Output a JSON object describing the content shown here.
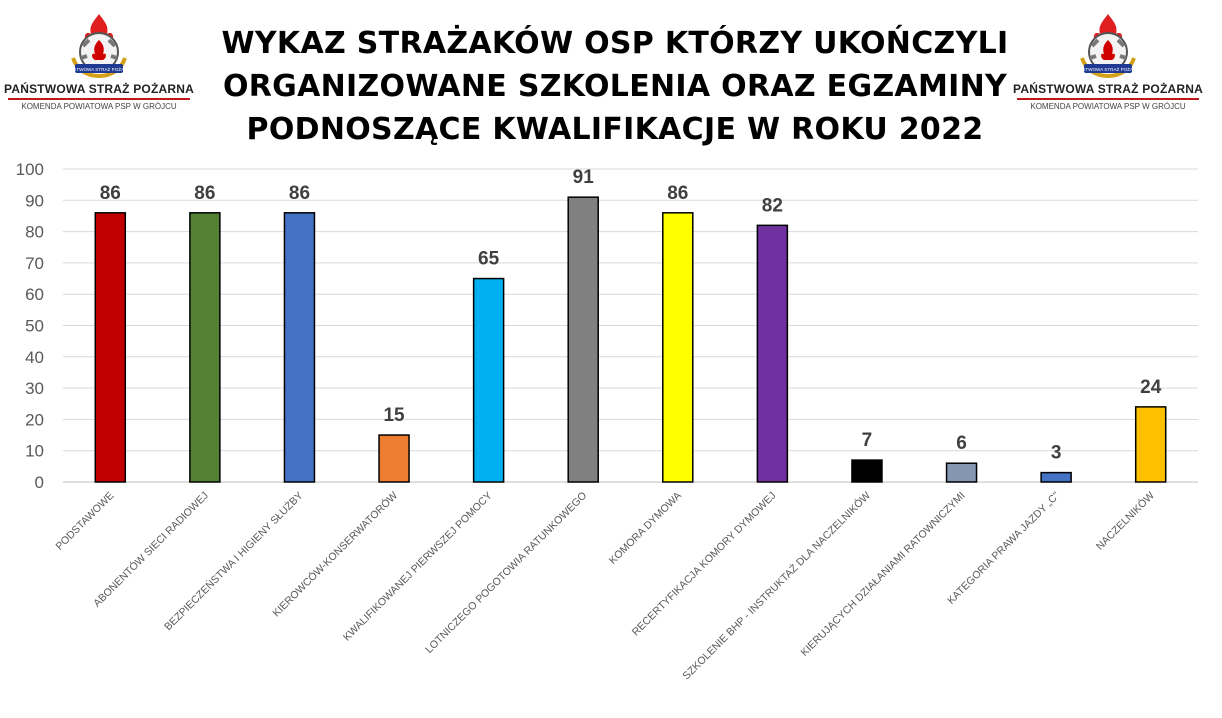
{
  "header": {
    "title_lines": [
      "WYKAZ STRAŻAKÓW OSP KTÓRZY UKOŃCZYLI",
      "ORGANIZOWANE SZKOLENIA ORAZ EGZAMINY",
      "PODNOSZĄCE KWALIFIKACJE W ROKU 2022"
    ]
  },
  "logos": {
    "org_name": "PAŃSTWOWA STRAŻ POŻARNA",
    "unit_name": "KOMENDA POWIATOWA PSP W GRÓJCU",
    "emblem_ribbon": "PAŃSTWOWA STRAŻ POŻARNA"
  },
  "chart_data": {
    "type": "bar",
    "title": "WYKAZ STRAŻAKÓW OSP KTÓRZY UKOŃCZYLI ORGANIZOWANE SZKOLENIA ORAZ EGZAMINY PODNOSZĄCE KWALIFIKACJE W ROKU 2022",
    "xlabel": "",
    "ylabel": "",
    "ylim": [
      0,
      100
    ],
    "yticks": [
      0,
      10,
      20,
      30,
      40,
      50,
      60,
      70,
      80,
      90,
      100
    ],
    "grid": true,
    "legend": "none",
    "categories": [
      "PODSTAWOWE",
      "ABONENTÓW SIECI RADIOWEJ",
      "BEZPIECZEŃSTWA I HIGIENY SŁUŻBY",
      "KIEROWCÓW-KONSERWATORÓW",
      "KWALIFIKOWANEJ PIERWSZEJ POMOCY",
      "LOTNICZEGO POGOTOWIA RATUNKOWEGO",
      "KOMORA DYMOWA",
      "RECERTYFIKACJA KOMORY DYMOWEJ",
      "SZKOLENIE BHP - INSTRUKTAŻ DLA NACZELNIKÓW",
      "KIERUJĄCYCH DZIAŁANIAMI RATOWNICZYMI",
      "KATEGORIA PRAWA JAZDY „C\"",
      "NACZELNIKÓW"
    ],
    "values": [
      86,
      86,
      86,
      15,
      65,
      91,
      86,
      82,
      7,
      6,
      3,
      24
    ],
    "colors": [
      "#c00000",
      "#548235",
      "#4472c4",
      "#ed7d31",
      "#00b0f0",
      "#808080",
      "#ffff00",
      "#7030a0",
      "#000000",
      "#8497b0",
      "#4472c4",
      "#ffc000"
    ]
  }
}
